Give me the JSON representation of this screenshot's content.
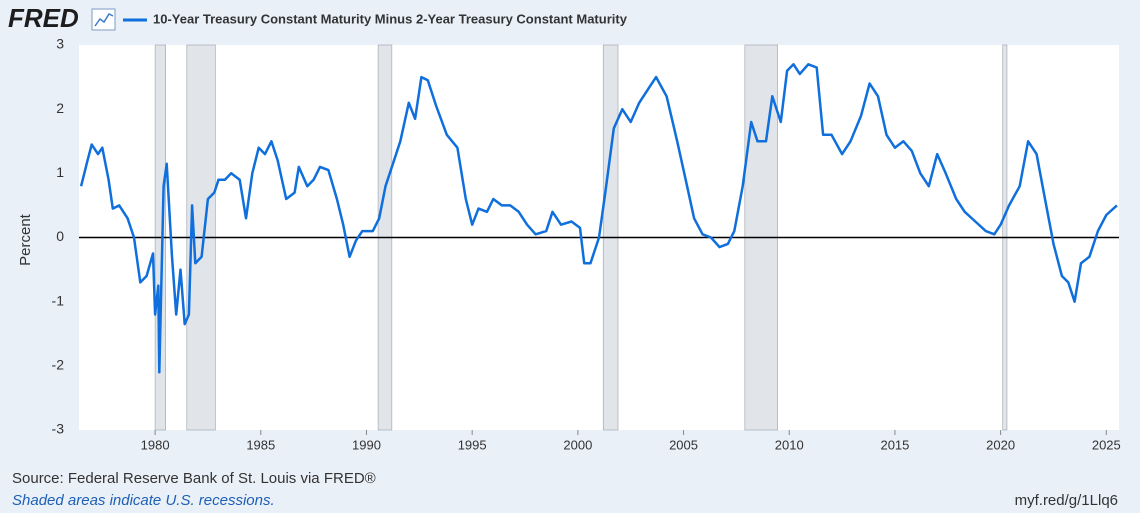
{
  "chart_data": {
    "type": "line",
    "logo": "FRED",
    "ylabel": "Percent",
    "source": "Source: Federal Reserve Bank of St. Louis via FRED®",
    "note": "Shaded areas indicate U.S. recessions.",
    "link": "myf.red/g/1Llq6",
    "xlim": [
      1976.4,
      2025.6
    ],
    "ylim": [
      -3,
      3
    ],
    "xticks": [
      1980,
      1985,
      1990,
      1995,
      2000,
      2005,
      2010,
      2015,
      2020,
      2025
    ],
    "yticks": [
      -3,
      -2,
      -1,
      0,
      1,
      2,
      3
    ],
    "grid": false,
    "recessions": [
      [
        1980.0,
        1980.5
      ],
      [
        1981.5,
        1982.85
      ],
      [
        1990.55,
        1991.2
      ],
      [
        2001.2,
        2001.9
      ],
      [
        2007.9,
        2009.45
      ],
      [
        2020.1,
        2020.3
      ]
    ],
    "recession_color": "#e1e5ea",
    "x": [
      1976.5,
      1976.8,
      1977.0,
      1977.3,
      1977.5,
      1977.8,
      1978.0,
      1978.3,
      1978.7,
      1979.0,
      1979.3,
      1979.6,
      1979.9,
      1980.0,
      1980.15,
      1980.2,
      1980.4,
      1980.55,
      1980.8,
      1981.0,
      1981.2,
      1981.4,
      1981.6,
      1981.75,
      1981.9,
      1982.2,
      1982.5,
      1982.8,
      1983.0,
      1983.3,
      1983.6,
      1984.0,
      1984.3,
      1984.6,
      1984.9,
      1985.2,
      1985.5,
      1985.8,
      1986.2,
      1986.6,
      1986.8,
      1987.2,
      1987.5,
      1987.8,
      1988.2,
      1988.6,
      1988.9,
      1989.2,
      1989.5,
      1989.8,
      1990.3,
      1990.6,
      1990.9,
      1991.3,
      1991.6,
      1992.0,
      1992.3,
      1992.6,
      1992.9,
      1993.3,
      1993.8,
      1994.3,
      1994.7,
      1995.0,
      1995.3,
      1995.7,
      1996.0,
      1996.4,
      1996.8,
      1997.2,
      1997.6,
      1998.0,
      1998.5,
      1998.8,
      1999.2,
      1999.7,
      2000.1,
      2000.3,
      2000.6,
      2001.0,
      2001.3,
      2001.7,
      2002.1,
      2002.5,
      2002.9,
      2003.4,
      2003.7,
      2004.2,
      2004.7,
      2005.1,
      2005.5,
      2005.9,
      2006.3,
      2006.7,
      2007.1,
      2007.4,
      2007.8,
      2008.2,
      2008.5,
      2008.9,
      2009.2,
      2009.6,
      2009.9,
      2010.2,
      2010.5,
      2010.9,
      2011.3,
      2011.6,
      2012.0,
      2012.5,
      2012.9,
      2013.4,
      2013.8,
      2014.2,
      2014.6,
      2015.0,
      2015.4,
      2015.8,
      2016.2,
      2016.6,
      2017.0,
      2017.4,
      2017.9,
      2018.3,
      2018.8,
      2019.3,
      2019.7,
      2020.0,
      2020.4,
      2020.9,
      2021.3,
      2021.7,
      2022.1,
      2022.5,
      2022.9,
      2023.2,
      2023.5,
      2023.8,
      2024.2,
      2024.6,
      2025.0,
      2025.5
    ],
    "series": [
      {
        "name": "10-Year Treasury Constant Maturity Minus 2-Year Treasury Constant Maturity",
        "color": "#0f6fdc",
        "values": [
          0.8,
          1.2,
          1.45,
          1.3,
          1.4,
          0.9,
          0.45,
          0.5,
          0.3,
          0.0,
          -0.7,
          -0.6,
          -0.25,
          -1.2,
          -0.75,
          -2.1,
          0.8,
          1.15,
          -0.3,
          -1.2,
          -0.5,
          -1.35,
          -1.2,
          0.5,
          -0.4,
          -0.3,
          0.6,
          0.7,
          0.9,
          0.9,
          1.0,
          0.9,
          0.3,
          1.0,
          1.4,
          1.3,
          1.5,
          1.2,
          0.6,
          0.7,
          1.1,
          0.8,
          0.9,
          1.1,
          1.05,
          0.6,
          0.2,
          -0.3,
          -0.05,
          0.1,
          0.1,
          0.3,
          0.8,
          1.2,
          1.5,
          2.1,
          1.85,
          2.5,
          2.45,
          2.05,
          1.6,
          1.4,
          0.6,
          0.2,
          0.45,
          0.4,
          0.6,
          0.5,
          0.5,
          0.4,
          0.2,
          0.05,
          0.1,
          0.4,
          0.2,
          0.25,
          0.15,
          -0.4,
          -0.4,
          0.0,
          0.7,
          1.7,
          2.0,
          1.8,
          2.1,
          2.35,
          2.5,
          2.2,
          1.5,
          0.9,
          0.3,
          0.05,
          0.0,
          -0.15,
          -0.1,
          0.1,
          0.8,
          1.8,
          1.5,
          1.5,
          2.2,
          1.8,
          2.6,
          2.7,
          2.55,
          2.7,
          2.65,
          1.6,
          1.6,
          1.3,
          1.5,
          1.9,
          2.4,
          2.2,
          1.6,
          1.4,
          1.5,
          1.35,
          1.0,
          0.8,
          1.3,
          1.0,
          0.6,
          0.4,
          0.25,
          0.1,
          0.05,
          0.2,
          0.5,
          0.8,
          1.5,
          1.3,
          0.6,
          -0.1,
          -0.6,
          -0.7,
          -1.0,
          -0.4,
          -0.3,
          0.1,
          0.35,
          0.5
        ]
      }
    ]
  }
}
